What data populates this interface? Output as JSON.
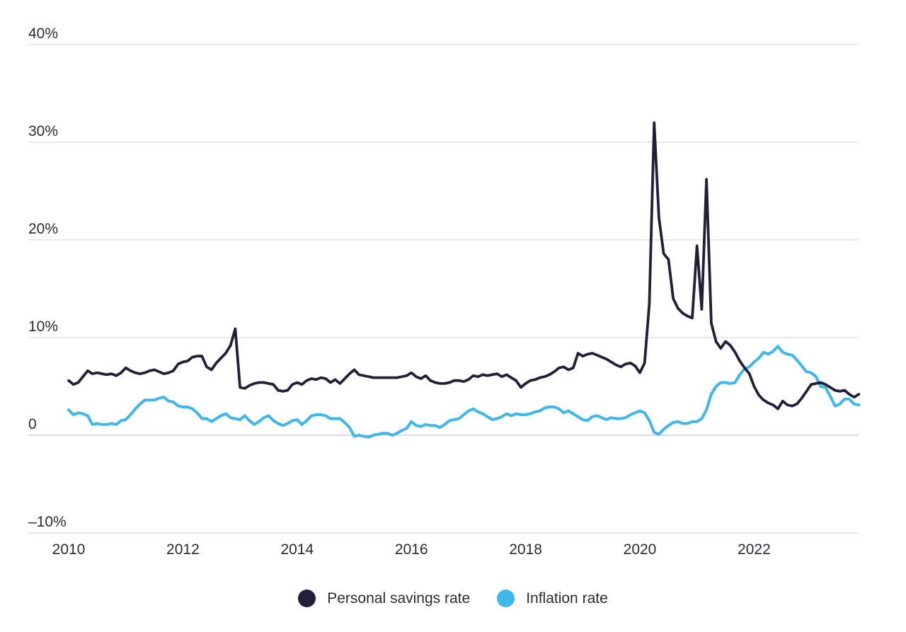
{
  "chart_data": {
    "type": "line",
    "title": "",
    "x_unit": "month",
    "x_start": "2010-01",
    "x_end": "2023-11",
    "x_tick_years": [
      2010,
      2012,
      2014,
      2016,
      2018,
      2020,
      2022
    ],
    "x_tick_labels": [
      "2010",
      "2012",
      "2014",
      "2016",
      "2018",
      "2020",
      "2022"
    ],
    "y_tick_values": [
      40,
      30,
      20,
      10,
      0,
      -10
    ],
    "y_tick_labels": [
      "40%",
      "30%",
      "20%",
      "10%",
      "0",
      "–10%"
    ],
    "ylim": [
      -10,
      40
    ],
    "grid": "horizontal-only",
    "gridline_color": "#d9d9d9",
    "zero_gridline_color": "#c6c6c6",
    "legend_position": "bottom-center",
    "series": [
      {
        "name": "Personal savings rate",
        "color": "#212038",
        "values": [
          5.6,
          5.2,
          5.4,
          6.0,
          6.6,
          6.3,
          6.4,
          6.3,
          6.2,
          6.3,
          6.1,
          6.4,
          6.9,
          6.6,
          6.4,
          6.3,
          6.4,
          6.6,
          6.7,
          6.5,
          6.3,
          6.4,
          6.6,
          7.3,
          7.5,
          7.6,
          8.0,
          8.1,
          8.1,
          7.0,
          6.7,
          7.4,
          7.9,
          8.4,
          9.2,
          10.9,
          4.9,
          4.8,
          5.1,
          5.3,
          5.4,
          5.4,
          5.3,
          5.2,
          4.6,
          4.5,
          4.6,
          5.2,
          5.4,
          5.2,
          5.6,
          5.8,
          5.7,
          5.9,
          5.8,
          5.4,
          5.7,
          5.3,
          5.8,
          6.3,
          6.7,
          6.2,
          6.1,
          6.0,
          5.9,
          5.9,
          5.9,
          5.9,
          5.9,
          5.9,
          6.0,
          6.1,
          6.4,
          6.0,
          5.8,
          6.1,
          5.6,
          5.4,
          5.3,
          5.3,
          5.4,
          5.6,
          5.6,
          5.5,
          5.7,
          6.1,
          6.0,
          6.2,
          6.1,
          6.2,
          6.3,
          6.0,
          6.2,
          5.9,
          5.6,
          4.9,
          5.3,
          5.6,
          5.7,
          5.9,
          6.0,
          6.2,
          6.5,
          6.9,
          7.0,
          6.7,
          6.9,
          8.4,
          8.1,
          8.3,
          8.4,
          8.2,
          8.0,
          7.8,
          7.5,
          7.2,
          7.0,
          7.3,
          7.4,
          7.1,
          6.4,
          7.4,
          13.5,
          32.0,
          22.3,
          18.6,
          18.0,
          14.0,
          13.0,
          12.5,
          12.2,
          12.0,
          19.4,
          12.9,
          26.2,
          11.5,
          9.6,
          8.9,
          9.6,
          9.2,
          8.5,
          7.6,
          6.9,
          6.3,
          5.0,
          4.1,
          3.6,
          3.3,
          3.1,
          2.7,
          3.5,
          3.1,
          3.0,
          3.2,
          3.8,
          4.5,
          5.2,
          5.3,
          5.4,
          5.2,
          4.9,
          4.6,
          4.5,
          4.6,
          4.2,
          3.9,
          4.2
        ]
      },
      {
        "name": "Inflation rate",
        "color": "#41b6e8",
        "values": [
          2.6,
          2.1,
          2.3,
          2.2,
          2.0,
          1.1,
          1.2,
          1.1,
          1.1,
          1.2,
          1.1,
          1.5,
          1.6,
          2.1,
          2.7,
          3.2,
          3.6,
          3.6,
          3.6,
          3.8,
          3.9,
          3.5,
          3.4,
          3.0,
          2.9,
          2.9,
          2.7,
          2.3,
          1.7,
          1.7,
          1.4,
          1.7,
          2.0,
          2.2,
          1.8,
          1.7,
          1.6,
          2.0,
          1.5,
          1.1,
          1.4,
          1.8,
          2.0,
          1.5,
          1.2,
          1.0,
          1.2,
          1.5,
          1.6,
          1.1,
          1.5,
          2.0,
          2.1,
          2.1,
          2.0,
          1.7,
          1.7,
          1.7,
          1.3,
          0.8,
          -0.1,
          0.0,
          -0.1,
          -0.2,
          0.0,
          0.1,
          0.2,
          0.2,
          0.0,
          0.2,
          0.5,
          0.7,
          1.4,
          1.0,
          0.9,
          1.1,
          1.0,
          1.0,
          0.8,
          1.1,
          1.5,
          1.6,
          1.7,
          2.1,
          2.5,
          2.7,
          2.4,
          2.2,
          1.9,
          1.6,
          1.7,
          1.9,
          2.2,
          2.0,
          2.2,
          2.1,
          2.1,
          2.2,
          2.4,
          2.5,
          2.8,
          2.9,
          2.9,
          2.7,
          2.3,
          2.5,
          2.2,
          1.9,
          1.6,
          1.5,
          1.9,
          2.0,
          1.8,
          1.6,
          1.8,
          1.7,
          1.7,
          1.8,
          2.1,
          2.3,
          2.5,
          2.3,
          1.5,
          0.3,
          0.1,
          0.6,
          1.0,
          1.3,
          1.4,
          1.2,
          1.2,
          1.4,
          1.4,
          1.7,
          2.6,
          4.2,
          5.0,
          5.4,
          5.4,
          5.3,
          5.4,
          6.2,
          6.8,
          7.0,
          7.5,
          7.9,
          8.5,
          8.3,
          8.6,
          9.1,
          8.5,
          8.3,
          8.2,
          7.7,
          7.1,
          6.5,
          6.4,
          6.0,
          5.0,
          4.9,
          4.0,
          3.0,
          3.2,
          3.7,
          3.7,
          3.2,
          3.1
        ]
      }
    ]
  }
}
